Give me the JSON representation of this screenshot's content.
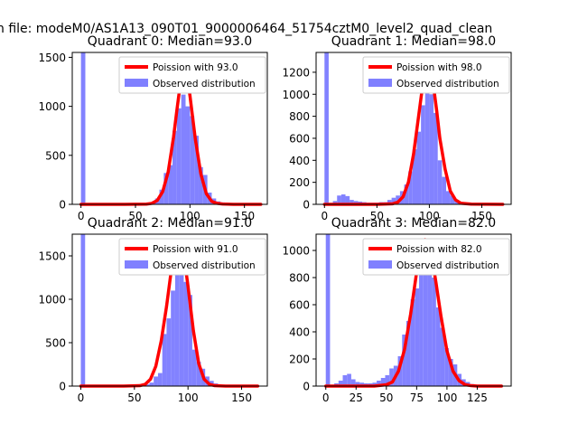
{
  "figure": {
    "suptitle": "n file: modeM0/AS1A13_090T01_9000006464_51754cztM0_level2_quad_clean"
  },
  "colors": {
    "histogram": "#8080ff",
    "poisson_curve": "#ff0000",
    "axes": "#000000",
    "background": "#ffffff"
  },
  "chart_data": [
    {
      "type": "bar",
      "title": "Quadrant 0: Median=93.0",
      "xlim": [
        -8,
        171
      ],
      "ylim": [
        0,
        1550
      ],
      "xticks": [
        0,
        50,
        100,
        150
      ],
      "yticks": [
        0,
        500,
        1000,
        1500
      ],
      "legend_position": "top-right",
      "series": [
        {
          "name": "Poission with 93.0",
          "kind": "line",
          "x": [
            0,
            40,
            60,
            65,
            70,
            75,
            80,
            85,
            88,
            90,
            93,
            96,
            98,
            100,
            102,
            105,
            110,
            115,
            120,
            125,
            130,
            140,
            165
          ],
          "y": [
            0,
            0,
            2,
            10,
            40,
            130,
            330,
            690,
            960,
            1130,
            1300,
            1300,
            1260,
            1110,
            930,
            660,
            310,
            110,
            30,
            10,
            3,
            0,
            0
          ]
        },
        {
          "name": "Observed distribution",
          "kind": "hist",
          "bin_width": 4,
          "bins": [
            {
              "x": 0,
              "y": 1550
            },
            {
              "x": 56,
              "y": 5
            },
            {
              "x": 60,
              "y": 10
            },
            {
              "x": 64,
              "y": 20
            },
            {
              "x": 68,
              "y": 60
            },
            {
              "x": 72,
              "y": 150
            },
            {
              "x": 76,
              "y": 320
            },
            {
              "x": 80,
              "y": 400
            },
            {
              "x": 84,
              "y": 750
            },
            {
              "x": 88,
              "y": 980
            },
            {
              "x": 92,
              "y": 1120
            },
            {
              "x": 96,
              "y": 1000
            },
            {
              "x": 100,
              "y": 900
            },
            {
              "x": 104,
              "y": 700
            },
            {
              "x": 108,
              "y": 380
            },
            {
              "x": 112,
              "y": 300
            },
            {
              "x": 116,
              "y": 120
            },
            {
              "x": 120,
              "y": 60
            },
            {
              "x": 124,
              "y": 30
            },
            {
              "x": 128,
              "y": 20
            },
            {
              "x": 132,
              "y": 10
            },
            {
              "x": 136,
              "y": 5
            }
          ]
        }
      ]
    },
    {
      "type": "bar",
      "title": "Quadrant 1: Median=98.0",
      "xlim": [
        -8,
        178
      ],
      "ylim": [
        0,
        1380
      ],
      "xticks": [
        0,
        50,
        100,
        150
      ],
      "yticks": [
        0,
        200,
        400,
        600,
        800,
        1000,
        1200
      ],
      "legend_position": "top-right",
      "series": [
        {
          "name": "Poission with 98.0",
          "kind": "line",
          "x": [
            0,
            50,
            65,
            70,
            75,
            80,
            85,
            90,
            95,
            98,
            101,
            104,
            107,
            110,
            115,
            120,
            125,
            130,
            140,
            170
          ],
          "y": [
            0,
            0,
            5,
            20,
            70,
            200,
            460,
            820,
            1180,
            1300,
            1230,
            1070,
            850,
            600,
            320,
            120,
            40,
            10,
            2,
            0
          ]
        },
        {
          "name": "Observed distribution",
          "kind": "hist",
          "bin_width": 4,
          "bins": [
            {
              "x": 0,
              "y": 1380
            },
            {
              "x": 8,
              "y": 30
            },
            {
              "x": 12,
              "y": 80
            },
            {
              "x": 16,
              "y": 90
            },
            {
              "x": 20,
              "y": 75
            },
            {
              "x": 24,
              "y": 40
            },
            {
              "x": 28,
              "y": 30
            },
            {
              "x": 32,
              "y": 25
            },
            {
              "x": 36,
              "y": 20
            },
            {
              "x": 40,
              "y": 15
            },
            {
              "x": 44,
              "y": 15
            },
            {
              "x": 48,
              "y": 15
            },
            {
              "x": 52,
              "y": 20
            },
            {
              "x": 56,
              "y": 20
            },
            {
              "x": 60,
              "y": 40
            },
            {
              "x": 64,
              "y": 60
            },
            {
              "x": 68,
              "y": 80
            },
            {
              "x": 72,
              "y": 120
            },
            {
              "x": 76,
              "y": 180
            },
            {
              "x": 80,
              "y": 300
            },
            {
              "x": 84,
              "y": 500
            },
            {
              "x": 88,
              "y": 660
            },
            {
              "x": 92,
              "y": 900
            },
            {
              "x": 96,
              "y": 1050
            },
            {
              "x": 100,
              "y": 1000
            },
            {
              "x": 104,
              "y": 830
            },
            {
              "x": 108,
              "y": 400
            },
            {
              "x": 112,
              "y": 250
            },
            {
              "x": 116,
              "y": 120
            },
            {
              "x": 120,
              "y": 80
            },
            {
              "x": 124,
              "y": 40
            },
            {
              "x": 128,
              "y": 20
            },
            {
              "x": 132,
              "y": 10
            }
          ]
        }
      ]
    },
    {
      "type": "bar",
      "title": "Quadrant 2: Median=91.0",
      "xlim": [
        -8,
        174
      ],
      "ylim": [
        0,
        1750
      ],
      "xticks": [
        0,
        50,
        100,
        150
      ],
      "yticks": [
        0,
        500,
        1000,
        1500
      ],
      "legend_position": "top-right",
      "series": [
        {
          "name": "Poission with 91.0",
          "kind": "line",
          "x": [
            0,
            40,
            55,
            60,
            65,
            70,
            75,
            80,
            85,
            88,
            91,
            94,
            97,
            100,
            105,
            110,
            115,
            120,
            125,
            135,
            165
          ],
          "y": [
            0,
            0,
            5,
            20,
            80,
            230,
            520,
            920,
            1390,
            1600,
            1680,
            1620,
            1430,
            1150,
            640,
            260,
            80,
            20,
            5,
            0,
            0
          ]
        },
        {
          "name": "Observed distribution",
          "kind": "hist",
          "bin_width": 4,
          "bins": [
            {
              "x": 0,
              "y": 1750
            },
            {
              "x": 56,
              "y": 10
            },
            {
              "x": 60,
              "y": 20
            },
            {
              "x": 64,
              "y": 40
            },
            {
              "x": 68,
              "y": 110
            },
            {
              "x": 72,
              "y": 150
            },
            {
              "x": 76,
              "y": 600
            },
            {
              "x": 80,
              "y": 780
            },
            {
              "x": 84,
              "y": 1100
            },
            {
              "x": 88,
              "y": 1500
            },
            {
              "x": 92,
              "y": 1380
            },
            {
              "x": 96,
              "y": 1200
            },
            {
              "x": 100,
              "y": 1050
            },
            {
              "x": 104,
              "y": 420
            },
            {
              "x": 108,
              "y": 280
            },
            {
              "x": 112,
              "y": 200
            },
            {
              "x": 116,
              "y": 110
            },
            {
              "x": 120,
              "y": 60
            },
            {
              "x": 124,
              "y": 30
            },
            {
              "x": 128,
              "y": 15
            }
          ]
        }
      ]
    },
    {
      "type": "bar",
      "title": "Quadrant 3: Median=82.0",
      "xlim": [
        -8,
        153
      ],
      "ylim": [
        0,
        1120
      ],
      "xticks": [
        0,
        25,
        50,
        75,
        100,
        125
      ],
      "yticks": [
        0,
        200,
        400,
        600,
        800,
        1000
      ],
      "legend_position": "top-right",
      "series": [
        {
          "name": "Poission with 82.0",
          "kind": "line",
          "x": [
            0,
            40,
            50,
            55,
            60,
            65,
            70,
            75,
            79,
            82,
            85,
            88,
            91,
            95,
            100,
            105,
            110,
            115,
            120,
            125,
            145
          ],
          "y": [
            0,
            0,
            10,
            30,
            110,
            270,
            530,
            840,
            1030,
            1080,
            1040,
            930,
            760,
            520,
            260,
            110,
            40,
            10,
            3,
            0,
            0
          ]
        },
        {
          "name": "Observed distribution",
          "kind": "hist",
          "bin_width": 3.5,
          "bins": [
            {
              "x": 0,
              "y": 1120
            },
            {
              "x": 7,
              "y": 20
            },
            {
              "x": 10.5,
              "y": 40
            },
            {
              "x": 14,
              "y": 80
            },
            {
              "x": 17.5,
              "y": 90
            },
            {
              "x": 21,
              "y": 50
            },
            {
              "x": 24.5,
              "y": 30
            },
            {
              "x": 28,
              "y": 25
            },
            {
              "x": 31.5,
              "y": 20
            },
            {
              "x": 35,
              "y": 20
            },
            {
              "x": 38.5,
              "y": 25
            },
            {
              "x": 42,
              "y": 40
            },
            {
              "x": 45.5,
              "y": 60
            },
            {
              "x": 49,
              "y": 80
            },
            {
              "x": 52.5,
              "y": 130
            },
            {
              "x": 56,
              "y": 150
            },
            {
              "x": 59.5,
              "y": 220
            },
            {
              "x": 63,
              "y": 380
            },
            {
              "x": 66.5,
              "y": 480
            },
            {
              "x": 70,
              "y": 640
            },
            {
              "x": 73.5,
              "y": 720
            },
            {
              "x": 77,
              "y": 900
            },
            {
              "x": 80.5,
              "y": 1000
            },
            {
              "x": 84,
              "y": 960
            },
            {
              "x": 87.5,
              "y": 800
            },
            {
              "x": 91,
              "y": 580
            },
            {
              "x": 94.5,
              "y": 430
            },
            {
              "x": 98,
              "y": 280
            },
            {
              "x": 101.5,
              "y": 200
            },
            {
              "x": 105,
              "y": 160
            },
            {
              "x": 108.5,
              "y": 90
            },
            {
              "x": 112,
              "y": 50
            },
            {
              "x": 115.5,
              "y": 30
            },
            {
              "x": 119,
              "y": 15
            }
          ]
        }
      ]
    }
  ]
}
